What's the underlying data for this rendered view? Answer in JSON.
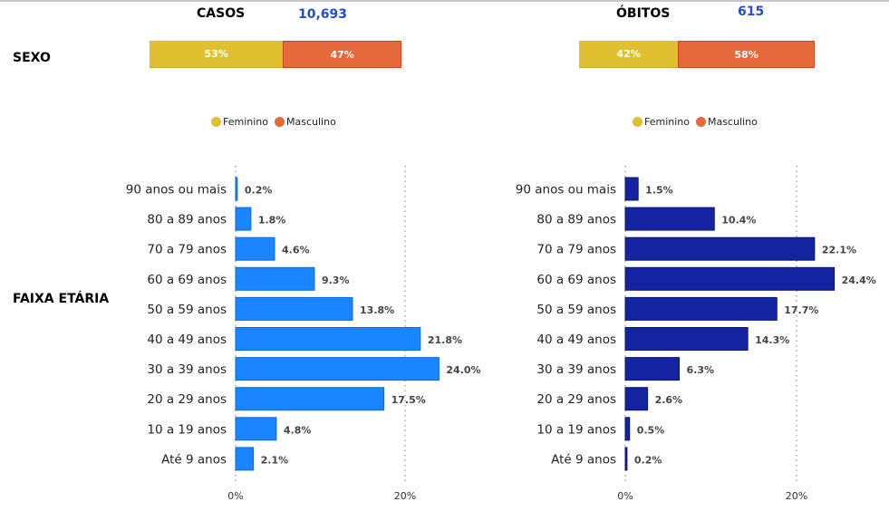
{
  "colors": {
    "feminino": "#e0c030",
    "masculino": "#e5693a",
    "casos_bar": "#1a85ff",
    "obitos_bar": "#1424a0",
    "kpi": "#1f4fd1"
  },
  "labels": {
    "sexo": "SEXO",
    "faixa_etaria": "FAIXA ETÁRIA"
  },
  "casos": {
    "title": "CASOS",
    "total": "10,693"
  },
  "obitos": {
    "title": "ÓBITOS",
    "total": "615"
  },
  "legend": {
    "feminino": "Feminino",
    "masculino": "Masculino"
  },
  "chart_data": [
    {
      "type": "bar",
      "orientation": "horizontal-stacked-100",
      "title": "CASOS - SEXO",
      "series": [
        {
          "name": "Feminino",
          "values": [
            53
          ],
          "label": "53%"
        },
        {
          "name": "Masculino",
          "values": [
            47
          ],
          "label": "47%"
        }
      ],
      "legend": "bottom-center"
    },
    {
      "type": "bar",
      "orientation": "horizontal-stacked-100",
      "title": "ÓBITOS - SEXO",
      "series": [
        {
          "name": "Feminino",
          "values": [
            42
          ],
          "label": "42%"
        },
        {
          "name": "Masculino",
          "values": [
            58
          ],
          "label": "58%"
        }
      ],
      "legend": "bottom-center"
    },
    {
      "type": "bar",
      "orientation": "horizontal",
      "title": "CASOS - FAIXA ETÁRIA",
      "categories": [
        "90 anos ou mais",
        "80 a 89 anos",
        "70 a 79 anos",
        "60 a 69 anos",
        "50 a 59 anos",
        "40 a 49 anos",
        "30 a 39 anos",
        "20 a 29 anos",
        "10 a 19 anos",
        "Até 9 anos"
      ],
      "values": [
        0.2,
        1.8,
        4.6,
        9.3,
        13.8,
        21.8,
        24.0,
        17.5,
        4.8,
        2.1
      ],
      "data_labels": [
        "0.2%",
        "1.8%",
        "4.6%",
        "9.3%",
        "13.8%",
        "21.8%",
        "24.0%",
        "17.5%",
        "4.8%",
        "2.1%"
      ],
      "x_ticks": [
        "0%",
        "20%"
      ],
      "xlim": [
        0,
        20
      ],
      "grid": "vertical dotted"
    },
    {
      "type": "bar",
      "orientation": "horizontal",
      "title": "ÓBITOS - FAIXA ETÁRIA",
      "categories": [
        "90 anos ou mais",
        "80 a 89 anos",
        "70 a 79 anos",
        "60 a 69 anos",
        "50 a 59 anos",
        "40 a 49 anos",
        "30 a 39 anos",
        "20 a 29 anos",
        "10 a 19 anos",
        "Até 9 anos"
      ],
      "values": [
        1.5,
        10.4,
        22.1,
        24.4,
        17.7,
        14.3,
        6.3,
        2.6,
        0.5,
        0.2
      ],
      "data_labels": [
        "1.5%",
        "10.4%",
        "22.1%",
        "24.4%",
        "17.7%",
        "14.3%",
        "6.3%",
        "2.6%",
        "0.5%",
        "0.2%"
      ],
      "x_ticks": [
        "0%",
        "20%"
      ],
      "xlim": [
        0,
        20
      ],
      "grid": "vertical dotted"
    }
  ]
}
